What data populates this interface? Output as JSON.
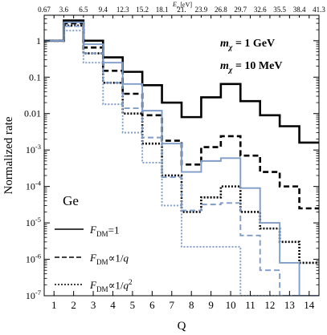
{
  "chart_data": {
    "type": "line",
    "title": "",
    "xlabel": "Q",
    "ylabel": "Normalized rate",
    "top_axis_label": "E_e [eV]",
    "top_axis_ticks": [
      "0.67",
      "3.6",
      "6.5",
      "9.4",
      "12.3",
      "15.2",
      "18.1",
      "21.",
      "23.9",
      "26.8",
      "29.7",
      "32.6",
      "35.5",
      "38.4",
      "41.3"
    ],
    "x_ticks": [
      "1",
      "2",
      "3",
      "4",
      "5",
      "6",
      "7",
      "8",
      "9",
      "10",
      "11",
      "12",
      "13",
      "14"
    ],
    "y_ticks": [
      "1",
      "0.1",
      "0.01",
      "10^-3",
      "10^-4",
      "10^-5",
      "10^-6",
      "10^-7"
    ],
    "xlim": [
      0.5,
      14.5
    ],
    "ylim_log10": [
      -7,
      0.7
    ],
    "grid": false,
    "material_label": "Ge",
    "mass_labels": [
      {
        "text": "m_χ = 1 GeV",
        "color": "#000000"
      },
      {
        "text": "m_χ = 10 MeV",
        "color": "#7f9cc8"
      }
    ],
    "legend": {
      "placement": "bottom-left",
      "entries": [
        {
          "label": "F_DM=1",
          "style": "solid"
        },
        {
          "label": "F_DM∝1/q",
          "style": "dashed"
        },
        {
          "label": "F_DM∝1/q^2",
          "style": "dotted"
        }
      ]
    },
    "series": [
      {
        "mass": "1 GeV",
        "form_factor": "F_DM=1",
        "style": "solid",
        "color": "#000000",
        "values": [
          1,
          3.6,
          1.0,
          0.35,
          0.14,
          0.06,
          0.02,
          0.008,
          0.028,
          0.065,
          0.022,
          0.009,
          0.0045,
          0.0016
        ]
      },
      {
        "mass": "1 GeV",
        "form_factor": "F_DM∝1/q",
        "style": "dashed",
        "color": "#000000",
        "values": [
          1,
          3.0,
          0.65,
          0.15,
          0.035,
          0.009,
          0.0018,
          0.0004,
          0.0012,
          0.0024,
          0.0007,
          0.00025,
          0.0001,
          2.5e-05
        ]
      },
      {
        "mass": "1 GeV",
        "form_factor": "F_DM∝1/q^2",
        "style": "dotted",
        "color": "#000000",
        "values": [
          1,
          2.6,
          0.45,
          0.07,
          0.01,
          0.0015,
          0.0002,
          2e-05,
          5e-05,
          0.0001,
          2e-05,
          7e-06,
          3e-06,
          8e-07
        ]
      },
      {
        "mass": "10 MeV",
        "form_factor": "F_DM=1",
        "style": "solid",
        "color": "#7f9cc8",
        "values": [
          1,
          3.2,
          0.8,
          0.25,
          0.065,
          0.012,
          0.0015,
          0.00025,
          0.0005,
          0.0006,
          9e-05,
          1e-05,
          8e-07,
          1e-07
        ]
      },
      {
        "mass": "10 MeV",
        "form_factor": "F_DM∝1/q",
        "style": "dashed",
        "color": "#7f9cc8",
        "values": [
          1,
          2.5,
          0.45,
          0.07,
          0.014,
          0.0022,
          0.00018,
          2.2e-05,
          3.2e-05,
          3.5e-05,
          4.5e-06,
          5e-07,
          1e-07,
          1e-07
        ]
      },
      {
        "mass": "10 MeV",
        "form_factor": "F_DM∝1/q^2",
        "style": "dotted",
        "color": "#7f9cc8",
        "values": [
          1,
          1.9,
          0.25,
          0.018,
          0.003,
          0.00045,
          3e-05,
          2.2e-06,
          2.2e-06,
          2.2e-06,
          1e-07,
          1e-07,
          1e-07,
          1e-07
        ]
      }
    ]
  }
}
